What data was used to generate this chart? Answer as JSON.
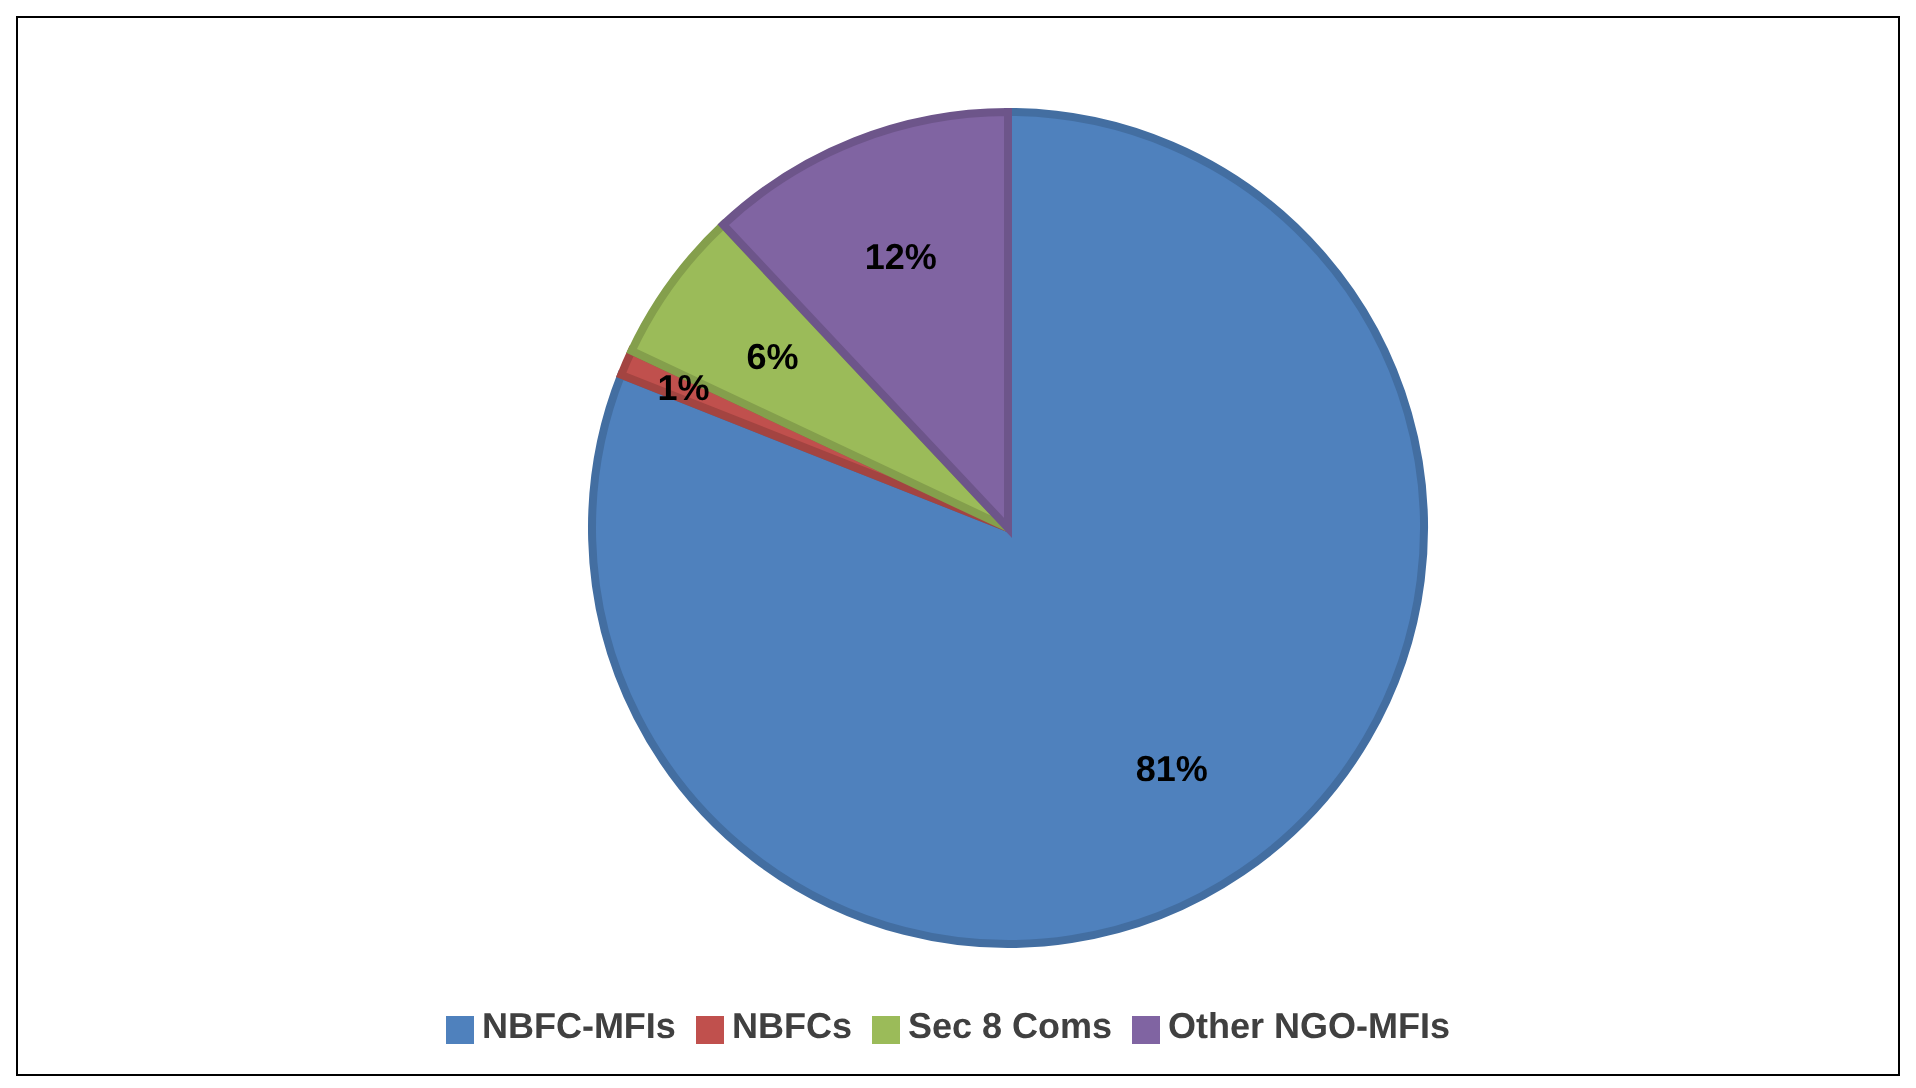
{
  "chart_data": {
    "type": "pie",
    "categories": [
      "NBFC-MFIs",
      "NBFCs",
      "Sec 8 Coms",
      "Other NGO-MFIs"
    ],
    "values": [
      81,
      1,
      6,
      12
    ],
    "colors": [
      "#4f81bd",
      "#c0504d",
      "#9bbb59",
      "#8064a2"
    ],
    "value_labels": [
      "81%",
      "1%",
      "6%",
      "12%"
    ],
    "legend": "bottom"
  }
}
